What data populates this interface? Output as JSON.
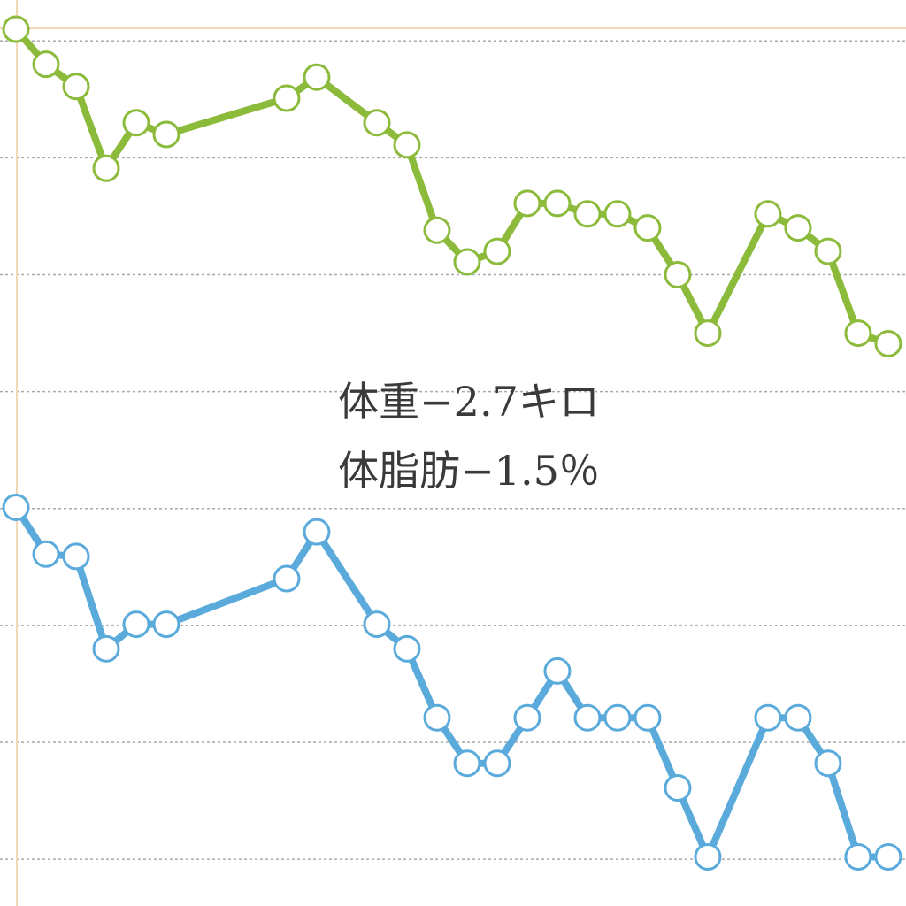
{
  "chart_data": {
    "type": "line",
    "annotations": [
      "体重−2.7キロ",
      "体脂肪−1.5％"
    ],
    "x": [
      0,
      1,
      2,
      3,
      4,
      5,
      9,
      10,
      12,
      13,
      14,
      15,
      16,
      17,
      18,
      19,
      20,
      21,
      22,
      23,
      25,
      26,
      27,
      28,
      29
    ],
    "series": [
      {
        "color": "#8cbb3c",
        "values": [
          7.1,
          6.8,
          6.61,
          5.91,
          6.3,
          6.2,
          6.51,
          6.69,
          6.3,
          6.11,
          5.38,
          5.11,
          5.2,
          5.61,
          5.61,
          5.52,
          5.52,
          5.4,
          5.0,
          4.5,
          5.52,
          5.4,
          5.2,
          4.5,
          4.41
        ]
      },
      {
        "color": "#5aaadb",
        "values": [
          3.01,
          2.61,
          2.59,
          1.8,
          2.01,
          2.01,
          2.4,
          2.8,
          2.01,
          1.8,
          1.21,
          0.82,
          0.82,
          1.21,
          1.61,
          1.21,
          1.21,
          1.21,
          0.61,
          0.02,
          1.21,
          1.21,
          0.82,
          0.02,
          0.02
        ]
      }
    ],
    "xlim": [
      -0.53,
      29.59
    ],
    "ylim": [
      -0.4,
      7.35
    ],
    "yticks": [
      0,
      1,
      2,
      3,
      4,
      5,
      6,
      7
    ],
    "grid": true
  }
}
